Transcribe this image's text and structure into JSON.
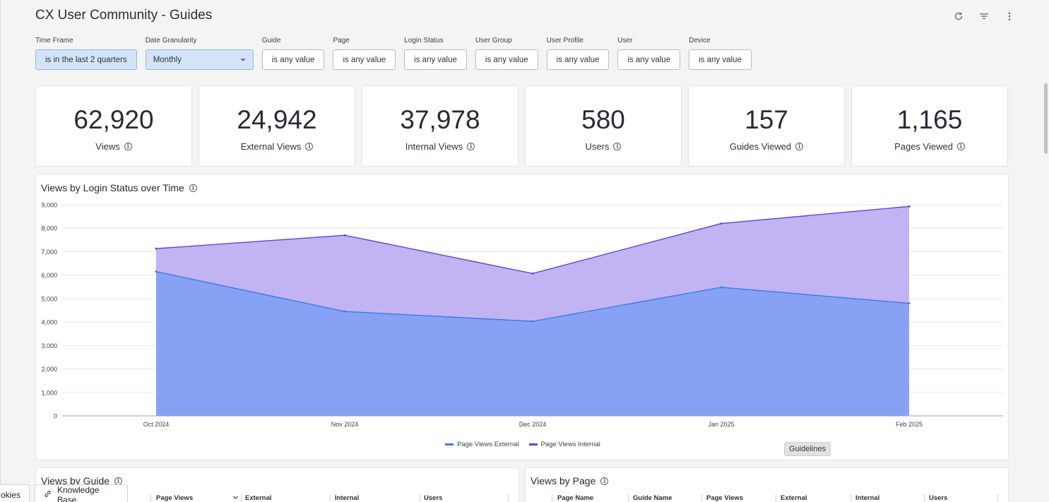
{
  "header": {
    "title": "CX User Community - Guides"
  },
  "filters": [
    {
      "label": "Time Frame",
      "value": "is in the last 2 quarters",
      "active": true,
      "select": false
    },
    {
      "label": "Date Granularity",
      "value": "Monthly",
      "active": true,
      "select": true
    },
    {
      "label": "Guide",
      "value": "is any value"
    },
    {
      "label": "Page",
      "value": "is any value"
    },
    {
      "label": "Login Status",
      "value": "is any value"
    },
    {
      "label": "User Group",
      "value": "is any value"
    },
    {
      "label": "User Profile",
      "value": "is any value"
    },
    {
      "label": "User",
      "value": "is any value"
    },
    {
      "label": "Device",
      "value": "is any value"
    }
  ],
  "kpis": [
    {
      "value": "62,920",
      "label": "Views"
    },
    {
      "value": "24,942",
      "label": "External Views"
    },
    {
      "value": "37,978",
      "label": "Internal Views"
    },
    {
      "value": "580",
      "label": "Users"
    },
    {
      "value": "157",
      "label": "Guides Viewed"
    },
    {
      "value": "1,165",
      "label": "Pages Viewed"
    }
  ],
  "chart_title": "Views by Login Status over Time",
  "chart_data": {
    "type": "area",
    "stacked": true,
    "categories": [
      "Oct 2024",
      "Nov 2024",
      "Dec 2024",
      "Jan 2025",
      "Feb 2025"
    ],
    "series": [
      {
        "name": "Page Views External",
        "values": [
          6150,
          4450,
          4030,
          5480,
          4800
        ],
        "color": "#4f7ff2"
      },
      {
        "name": "Page Views Internal",
        "values": [
          980,
          3250,
          2040,
          2720,
          4130
        ],
        "color": "#9479e6"
      }
    ],
    "yticks": [
      "0",
      "1,000",
      "2,000",
      "3,000",
      "4,000",
      "5,000",
      "6,000",
      "7,000",
      "8,000",
      "9,000"
    ],
    "ylim": [
      0,
      9000
    ],
    "grid": true,
    "legend": "bottom-center"
  },
  "tooltip": "Guidelines",
  "views_by_guide": {
    "title": "Views by Guide",
    "columns": [
      "Page Views",
      "External",
      "Internal",
      "Users"
    ]
  },
  "views_by_page": {
    "title": "Views by Page",
    "columns": [
      "Page Name",
      "Guide Name",
      "Page Views",
      "External",
      "Internal",
      "Users"
    ]
  },
  "bottom_tabs": {
    "cookies": "okies",
    "kb": "Knowledge Base"
  },
  "icons": {
    "refresh": "refresh-icon",
    "filter": "filter-icon",
    "more": "more-vert-icon",
    "info": "info-icon",
    "link": "link-icon"
  }
}
